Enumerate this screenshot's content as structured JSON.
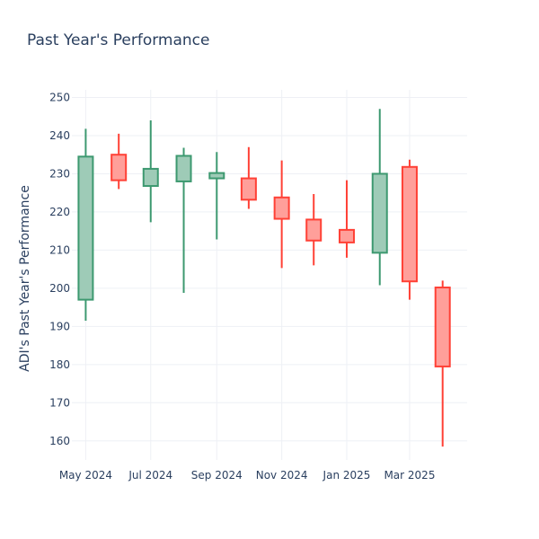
{
  "chart_data": {
    "type": "candlestick",
    "title": "Past Year's Performance",
    "xlabel": "",
    "ylabel": "ADI's Past Year's Performance",
    "ylim": [
      155,
      252
    ],
    "yticks": [
      160,
      170,
      180,
      190,
      200,
      210,
      220,
      230,
      240,
      250
    ],
    "xlim": [
      "2024-04-18",
      "2025-04-24"
    ],
    "xticks": [
      {
        "date": "2024-05-01",
        "label": "May 2024"
      },
      {
        "date": "2024-07-01",
        "label": "Jul 2024"
      },
      {
        "date": "2024-09-01",
        "label": "Sep 2024"
      },
      {
        "date": "2024-11-01",
        "label": "Nov 2024"
      },
      {
        "date": "2025-01-01",
        "label": "Jan 2025"
      },
      {
        "date": "2025-03-01",
        "label": "Mar 2025"
      }
    ],
    "grid": true,
    "colors": {
      "increasing_line": "#3d9970",
      "increasing_fill": "#9ecbb7",
      "decreasing_line": "#ff4136",
      "decreasing_fill": "#ff9f9a"
    },
    "candles": [
      {
        "date": "2024-05-01",
        "open": 197.0,
        "high": 241.8,
        "low": 191.5,
        "close": 234.5
      },
      {
        "date": "2024-06-01",
        "open": 235.0,
        "high": 240.5,
        "low": 226.0,
        "close": 228.3
      },
      {
        "date": "2024-07-01",
        "open": 226.8,
        "high": 244.0,
        "low": 217.3,
        "close": 231.3
      },
      {
        "date": "2024-08-01",
        "open": 228.0,
        "high": 236.8,
        "low": 198.8,
        "close": 234.7
      },
      {
        "date": "2024-09-01",
        "open": 228.8,
        "high": 235.7,
        "low": 212.8,
        "close": 230.2
      },
      {
        "date": "2024-10-01",
        "open": 228.8,
        "high": 237.0,
        "low": 220.8,
        "close": 223.2
      },
      {
        "date": "2024-11-01",
        "open": 223.8,
        "high": 233.5,
        "low": 205.3,
        "close": 218.2
      },
      {
        "date": "2024-12-01",
        "open": 218.0,
        "high": 224.7,
        "low": 206.0,
        "close": 212.5
      },
      {
        "date": "2025-01-01",
        "open": 215.3,
        "high": 228.3,
        "low": 208.0,
        "close": 212.0
      },
      {
        "date": "2025-02-01",
        "open": 209.3,
        "high": 247.0,
        "low": 200.8,
        "close": 230.0
      },
      {
        "date": "2025-03-01",
        "open": 231.8,
        "high": 233.7,
        "low": 197.0,
        "close": 201.8
      },
      {
        "date": "2025-04-01",
        "open": 200.2,
        "high": 202.0,
        "low": 158.5,
        "close": 179.5
      }
    ]
  }
}
